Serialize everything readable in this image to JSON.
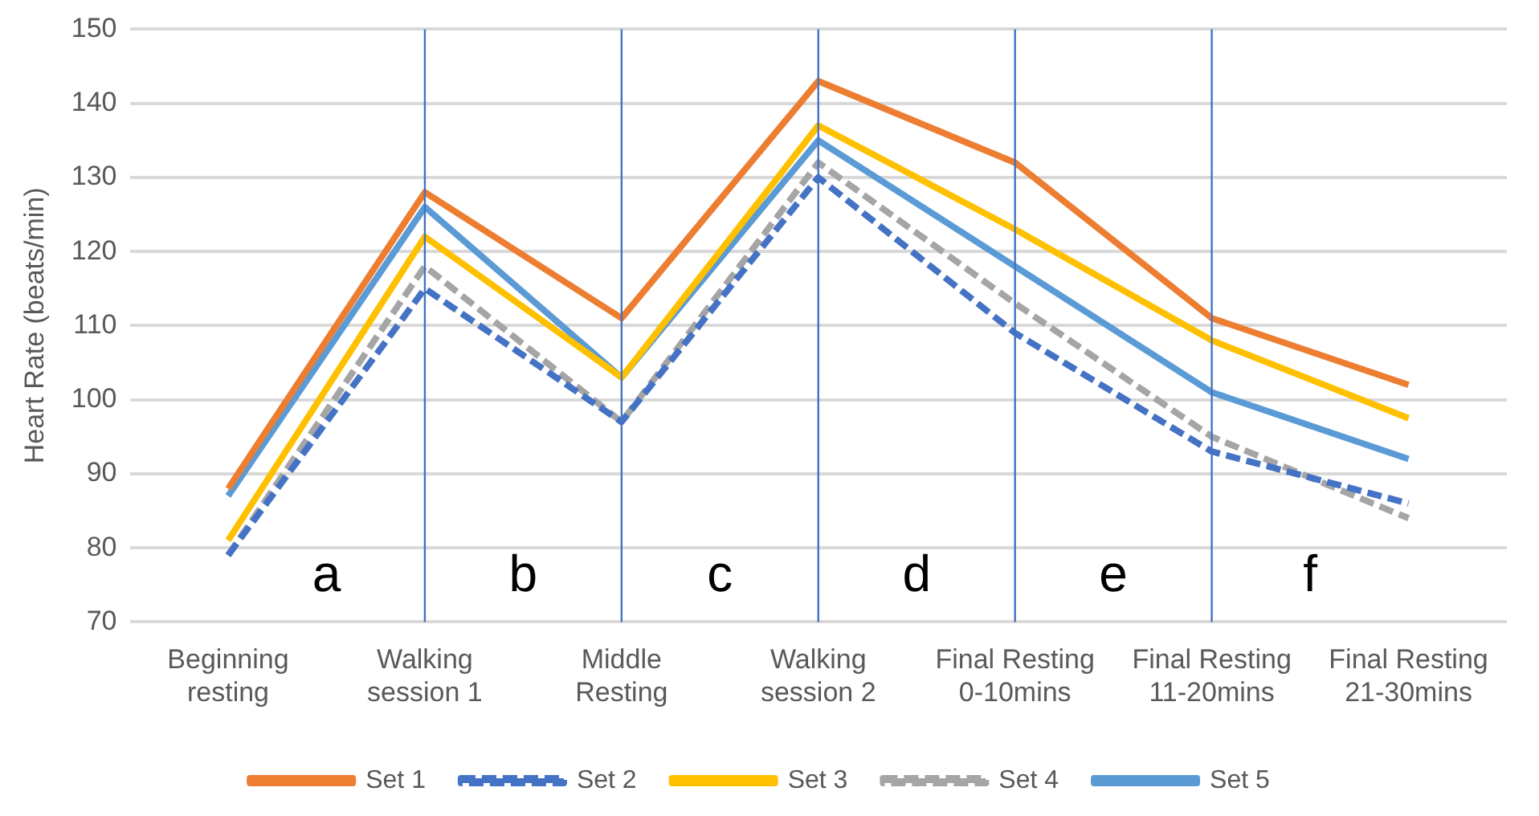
{
  "chart_data": {
    "type": "line",
    "ylabel": "Heart Rate (beats/min)",
    "categories": [
      "Beginning resting",
      "Walking session 1",
      "Middle Resting",
      "Walking session 2",
      "Final Resting 0-10mins",
      "Final Resting 11-20mins",
      "Final Resting 21-30mins"
    ],
    "series": [
      {
        "name": "Set 1",
        "color": "#ed7d31",
        "line_style": "solid",
        "values": [
          88,
          128,
          111,
          143,
          132,
          111,
          102
        ]
      },
      {
        "name": "Set 2",
        "color": "#4472c4",
        "line_style": "dashed",
        "values": [
          79,
          115,
          97,
          130,
          109,
          93,
          86
        ]
      },
      {
        "name": "Set 3",
        "color": "#ffc000",
        "line_style": "solid",
        "values": [
          81,
          122,
          103,
          137,
          123,
          108,
          97.5
        ]
      },
      {
        "name": "Set 4",
        "color": "#a5a5a5",
        "line_style": "dashed",
        "values": [
          79,
          118,
          97,
          132,
          113,
          95,
          84
        ]
      },
      {
        "name": "Set 5",
        "color": "#5b9bd5",
        "line_style": "solid",
        "values": [
          87,
          126,
          103,
          135,
          118,
          101,
          92
        ]
      }
    ],
    "ylim": [
      70,
      150
    ],
    "yticks": [
      70,
      80,
      90,
      100,
      110,
      120,
      130,
      140,
      150
    ],
    "grid": "y",
    "legend": "bottom",
    "marker": "none",
    "ref_lines": [
      {
        "axis": "x",
        "value": "Walking session 1",
        "color": "#4472c4"
      },
      {
        "axis": "x",
        "value": "Middle Resting",
        "color": "#4472c4"
      },
      {
        "axis": "x",
        "value": "Walking session 2",
        "color": "#4472c4"
      },
      {
        "axis": "x",
        "value": "Final Resting 0-10mins",
        "color": "#4472c4"
      },
      {
        "axis": "x",
        "value": "Final Resting 11-20mins",
        "color": "#4472c4"
      }
    ],
    "annotations": [
      "a",
      "b",
      "c",
      "d",
      "e",
      "f"
    ]
  }
}
